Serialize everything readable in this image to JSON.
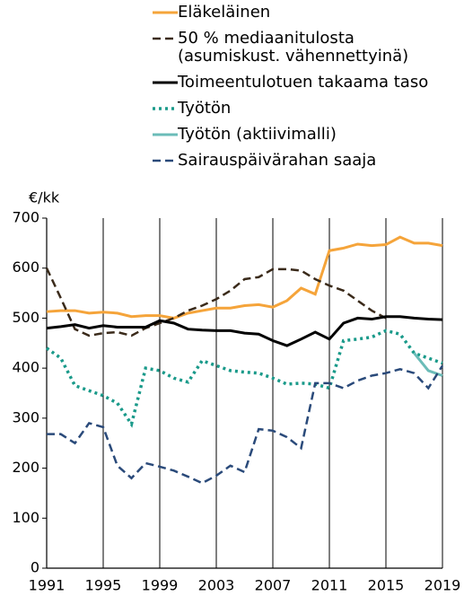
{
  "chart_data": {
    "type": "line",
    "y_label": "€/kk",
    "x": [
      1991,
      1992,
      1993,
      1994,
      1995,
      1996,
      1997,
      1998,
      1999,
      2000,
      2001,
      2002,
      2003,
      2004,
      2005,
      2006,
      2007,
      2008,
      2009,
      2010,
      2011,
      2012,
      2013,
      2014,
      2015,
      2016,
      2017,
      2018,
      2019
    ],
    "series": [
      {
        "name": "Eläkeläinen",
        "color": "#f5a43a",
        "style": "solid",
        "values": [
          513,
          515,
          515,
          510,
          512,
          510,
          503,
          505,
          505,
          500,
          510,
          515,
          520,
          520,
          525,
          527,
          522,
          535,
          560,
          548,
          635,
          640,
          648,
          645,
          647,
          662,
          650,
          650,
          645
        ]
      },
      {
        "name": "50 % mediaanitulosta (asumiskust. vähennettyinä)",
        "color": "#3a2a1a",
        "style": "dashed",
        "values": [
          600,
          540,
          478,
          465,
          470,
          472,
          465,
          480,
          490,
          500,
          515,
          525,
          538,
          555,
          578,
          582,
          598,
          598,
          595,
          578,
          565,
          555,
          535,
          515,
          500,
          null,
          null,
          null,
          null
        ]
      },
      {
        "name": "Toimeentulotuen takaama taso",
        "color": "#000000",
        "style": "solid",
        "values": [
          480,
          483,
          487,
          480,
          485,
          482,
          482,
          482,
          495,
          490,
          478,
          476,
          475,
          475,
          470,
          468,
          455,
          445,
          458,
          472,
          458,
          490,
          500,
          498,
          503,
          503,
          500,
          498,
          497
        ]
      },
      {
        "name": "Työtön",
        "color": "#1a9a8a",
        "style": "dotted",
        "values": [
          440,
          420,
          365,
          355,
          345,
          330,
          288,
          400,
          395,
          380,
          372,
          415,
          405,
          395,
          392,
          390,
          380,
          368,
          370,
          368,
          360,
          455,
          458,
          462,
          475,
          468,
          430,
          420,
          410
        ]
      },
      {
        "name": "Työtön (aktiivimalli)",
        "color": "#6bbcb8",
        "style": "solid",
        "values": [
          null,
          null,
          null,
          null,
          null,
          null,
          null,
          null,
          null,
          null,
          null,
          null,
          null,
          null,
          null,
          null,
          null,
          null,
          null,
          null,
          null,
          null,
          null,
          null,
          null,
          null,
          430,
          395,
          385
        ]
      },
      {
        "name": "Sairauspäivärahan saaja",
        "color": "#2a4a7a",
        "style": "dashed",
        "values": [
          268,
          268,
          250,
          290,
          282,
          205,
          180,
          210,
          203,
          195,
          183,
          170,
          185,
          205,
          192,
          278,
          275,
          262,
          240,
          370,
          370,
          360,
          375,
          385,
          390,
          398,
          390,
          360,
          405
        ]
      }
    ],
    "xlim": [
      1991,
      2019
    ],
    "xticks": [
      1991,
      1995,
      1999,
      2003,
      2007,
      2011,
      2015,
      2019
    ],
    "ylim": [
      0,
      700
    ],
    "yticks": [
      0,
      100,
      200,
      300,
      400,
      500,
      600,
      700
    ],
    "grid": "x"
  }
}
